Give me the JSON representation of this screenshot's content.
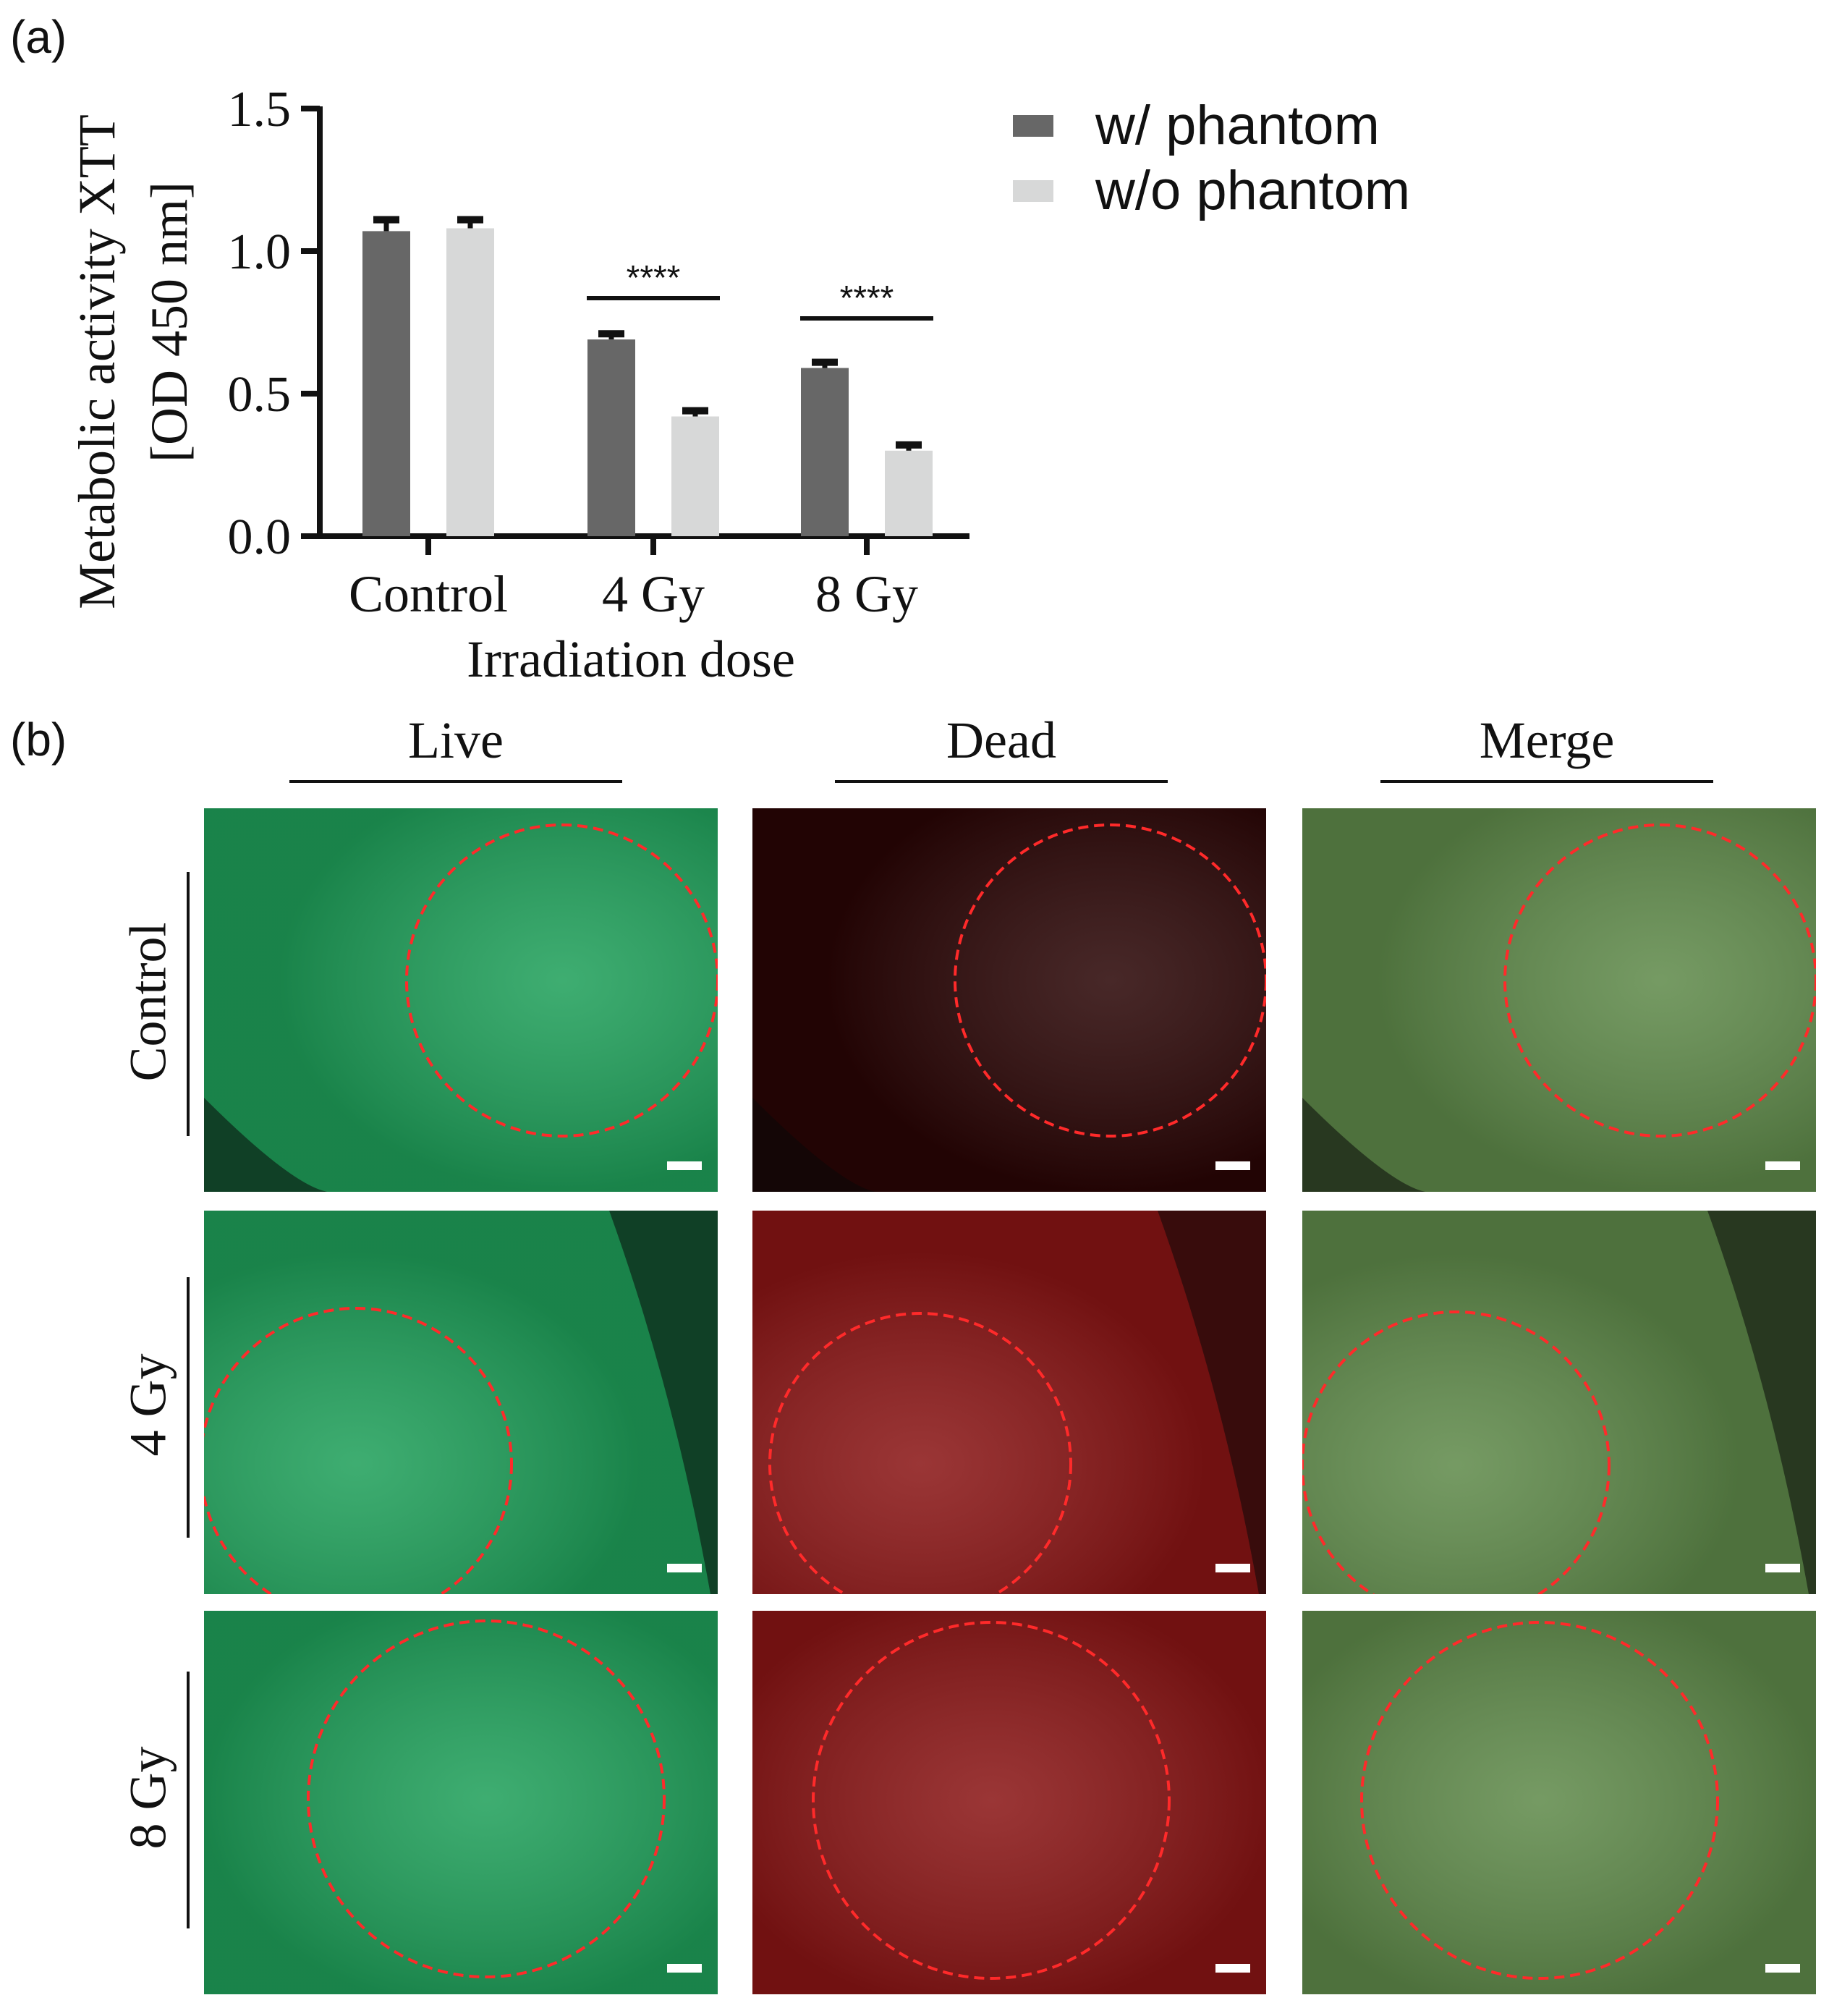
{
  "figure": {
    "panel_a_label": "(a)",
    "panel_b_label": "(b)"
  },
  "chart_data": {
    "type": "bar",
    "categories": [
      "Control",
      "4 Gy",
      "8 Gy"
    ],
    "series": [
      {
        "name": "w/ phantom",
        "values": [
          1.07,
          0.69,
          0.59
        ],
        "errors": [
          0.04,
          0.02,
          0.02
        ],
        "color": "#676767"
      },
      {
        "name": "w/o phantom",
        "values": [
          1.08,
          0.42,
          0.3
        ],
        "errors": [
          0.03,
          0.02,
          0.02
        ],
        "color": "#d7d8d8"
      }
    ],
    "xlabel": "Irradiation dose",
    "ylabel_line1": "Metabolic activity XTT",
    "ylabel_line2": "[OD 450 nm]",
    "ylim": [
      0,
      1.5
    ],
    "yticks": [
      "0.0",
      "0.5",
      "1.0",
      "1.5"
    ],
    "significance": [
      {
        "category": "4 Gy",
        "label": "****"
      },
      {
        "category": "8 Gy",
        "label": "****"
      }
    ],
    "legend_position": "top-right",
    "grid": false
  },
  "microscopy": {
    "columns": [
      "Live",
      "Dead",
      "Merge"
    ],
    "rows": [
      "Control",
      "4 Gy",
      "8 Gy"
    ],
    "channel_colors": {
      "Live": "#1fa05a",
      "Dead": "#8a1515",
      "Merge": "#5f8a4a"
    },
    "roi_color": "#ff2a2a"
  }
}
